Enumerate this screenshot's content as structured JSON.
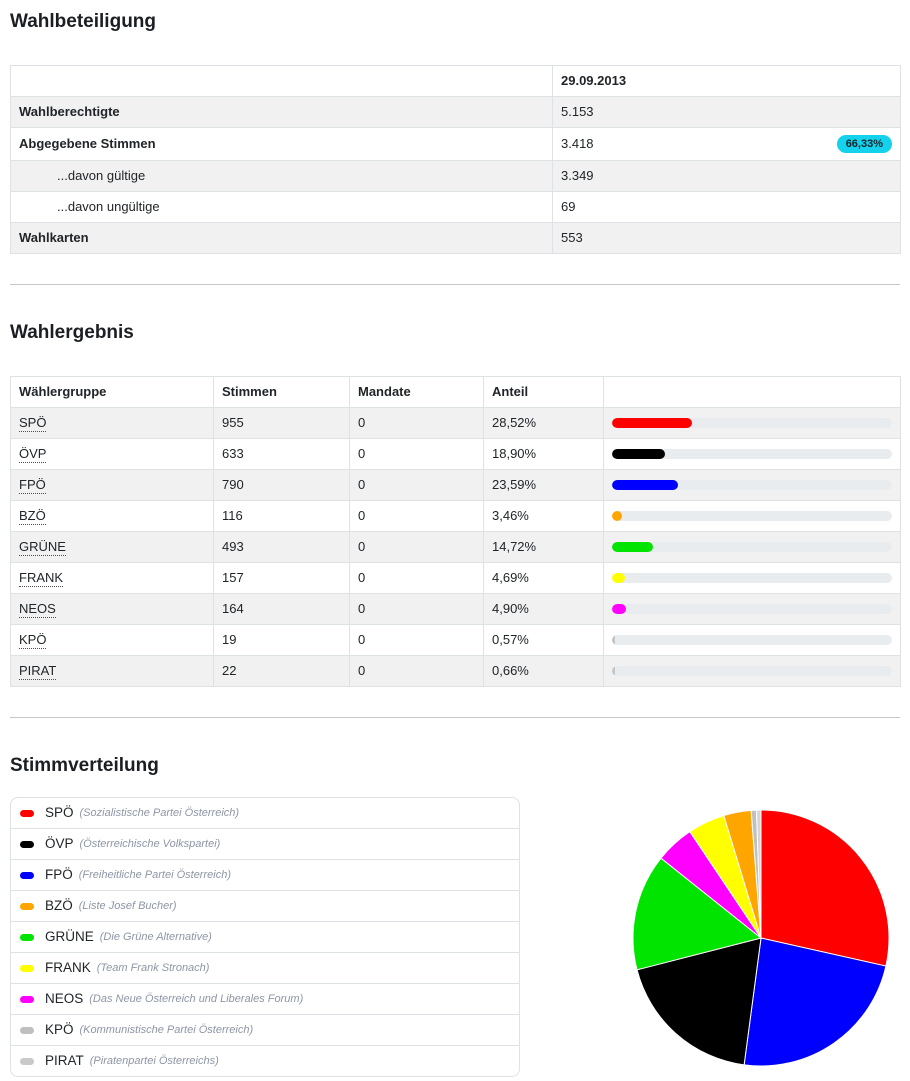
{
  "sections": {
    "turnout_title": "Wahlbeteiligung",
    "results_title": "Wahlergebnis",
    "distribution_title": "Stimmverteilung"
  },
  "turnout_table": {
    "date_header": "29.09.2013",
    "rows": [
      {
        "label": "Wahlberechtigte",
        "value": "5.153"
      },
      {
        "label": "Abgegebene Stimmen",
        "value": "3.418",
        "badge": "66,33%"
      },
      {
        "label": "...davon gültige",
        "value": "3.349"
      },
      {
        "label": "...davon ungültige",
        "value": "69"
      },
      {
        "label": "Wahlkarten",
        "value": "553"
      }
    ],
    "badge_color": "#14d1ec"
  },
  "results_table": {
    "headers": [
      "Wählergruppe",
      "Stimmen",
      "Mandate",
      "Anteil",
      ""
    ],
    "rows": [
      {
        "party": "SPÖ",
        "stimmen": "955",
        "mandate": "0",
        "anteil": "28,52%",
        "percent": 28.52,
        "color": "#fe0000"
      },
      {
        "party": "ÖVP",
        "stimmen": "633",
        "mandate": "0",
        "anteil": "18,90%",
        "percent": 18.9,
        "color": "#000000"
      },
      {
        "party": "FPÖ",
        "stimmen": "790",
        "mandate": "0",
        "anteil": "23,59%",
        "percent": 23.59,
        "color": "#0000fe"
      },
      {
        "party": "BZÖ",
        "stimmen": "116",
        "mandate": "0",
        "anteil": "3,46%",
        "percent": 3.46,
        "color": "#ffa500"
      },
      {
        "party": "GRÜNE",
        "stimmen": "493",
        "mandate": "0",
        "anteil": "14,72%",
        "percent": 14.72,
        "color": "#00e400"
      },
      {
        "party": "FRANK",
        "stimmen": "157",
        "mandate": "0",
        "anteil": "4,69%",
        "percent": 4.69,
        "color": "#ffff00"
      },
      {
        "party": "NEOS",
        "stimmen": "164",
        "mandate": "0",
        "anteil": "4,90%",
        "percent": 4.9,
        "color": "#ff00ff"
      },
      {
        "party": "KPÖ",
        "stimmen": "19",
        "mandate": "0",
        "anteil": "0,57%",
        "percent": 0.57,
        "color": "#c6c6c6"
      },
      {
        "party": "PIRAT",
        "stimmen": "22",
        "mandate": "0",
        "anteil": "0,66%",
        "percent": 0.66,
        "color": "#c6c6c6"
      }
    ],
    "bar_track_color": "#e9ecef"
  },
  "legend": {
    "items": [
      {
        "abbr": "SPÖ",
        "full": "(Sozialistische Partei Österreich)",
        "color": "#fe0000"
      },
      {
        "abbr": "ÖVP",
        "full": "(Österreichische Volkspartei)",
        "color": "#000000"
      },
      {
        "abbr": "FPÖ",
        "full": "(Freiheitliche Partei Österreich)",
        "color": "#0000fe"
      },
      {
        "abbr": "BZÖ",
        "full": "(Liste Josef Bucher)",
        "color": "#ffa500"
      },
      {
        "abbr": "GRÜNE",
        "full": "(Die Grüne Alternative)",
        "color": "#00e400"
      },
      {
        "abbr": "FRANK",
        "full": "(Team Frank Stronach)",
        "color": "#ffff00"
      },
      {
        "abbr": "NEOS",
        "full": "(Das Neue Österreich und Liberales Forum)",
        "color": "#ff00ff"
      },
      {
        "abbr": "KPÖ",
        "full": "(Kommunistische Partei Österreich)",
        "color": "#bfbfbf"
      },
      {
        "abbr": "PIRAT",
        "full": "(Piratenpartei Österreichs)",
        "color": "#c9c9c9"
      }
    ]
  },
  "chart_data": [
    {
      "type": "bar",
      "title": "Wahlergebnis — Anteil (inline percent bars)",
      "categories": [
        "SPÖ",
        "ÖVP",
        "FPÖ",
        "BZÖ",
        "GRÜNE",
        "FRANK",
        "NEOS",
        "KPÖ",
        "PIRAT"
      ],
      "series": [
        {
          "name": "Stimmen",
          "values": [
            955,
            633,
            790,
            116,
            493,
            157,
            164,
            19,
            22
          ]
        },
        {
          "name": "Mandate",
          "values": [
            0,
            0,
            0,
            0,
            0,
            0,
            0,
            0,
            0
          ]
        },
        {
          "name": "Anteil %",
          "values": [
            28.52,
            18.9,
            23.59,
            3.46,
            14.72,
            4.69,
            4.9,
            0.57,
            0.66
          ]
        }
      ],
      "xlabel": "",
      "ylabel": "Anteil",
      "xlim": [
        0,
        100
      ],
      "grid": false,
      "legend_position": "none",
      "bar_colors": [
        "#fe0000",
        "#000000",
        "#0000fe",
        "#ffa500",
        "#00e400",
        "#ffff00",
        "#ff00ff",
        "#c6c6c6",
        "#c6c6c6"
      ]
    },
    {
      "type": "pie",
      "title": "Stimmverteilung",
      "labels": [
        "SPÖ",
        "FPÖ",
        "ÖVP",
        "GRÜNE",
        "NEOS",
        "FRANK",
        "BZÖ",
        "PIRAT",
        "KPÖ"
      ],
      "values": [
        28.52,
        23.59,
        18.9,
        14.72,
        4.9,
        4.69,
        3.46,
        0.66,
        0.57
      ],
      "colors": [
        "#fe0000",
        "#0000fe",
        "#000000",
        "#00e400",
        "#ff00ff",
        "#ffff00",
        "#ffa500",
        "#c0c0c0",
        "#d6d6d6"
      ],
      "start_angle_deg": 0,
      "direction": "clockwise",
      "legend_position": "left-table"
    }
  ]
}
